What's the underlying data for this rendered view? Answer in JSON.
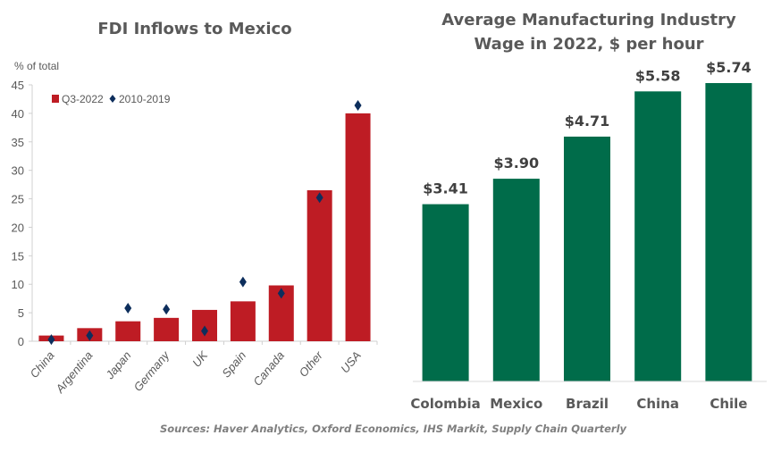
{
  "chart_data": [
    {
      "type": "bar",
      "title": "FDI Inflows to Mexico",
      "ylabel": "% of total",
      "xlabel": "",
      "ylim": [
        0,
        45
      ],
      "yticks": [
        0,
        5,
        10,
        15,
        20,
        25,
        30,
        35,
        40,
        45
      ],
      "grid": false,
      "legend_position": "top-left",
      "categories": [
        "China",
        "Argentina",
        "Japan",
        "Germany",
        "UK",
        "Spain",
        "Canada",
        "Other",
        "USA"
      ],
      "series": [
        {
          "name": "Q3-2022",
          "kind": "bar",
          "color": "#BE1C24",
          "values": [
            1.0,
            2.3,
            3.5,
            4.1,
            5.5,
            7.0,
            9.8,
            26.5,
            40.0
          ]
        },
        {
          "name": "2010-2019",
          "kind": "diamond-marker",
          "color": "#0D2E5C",
          "values": [
            0.3,
            1.0,
            5.8,
            5.6,
            1.8,
            10.4,
            8.4,
            25.2,
            41.4
          ]
        }
      ]
    },
    {
      "type": "bar",
      "title": "Average Manufacturing Industry Wage in 2022, $ per hour",
      "title_lines": [
        "Average Manufacturing Industry",
        "Wage in 2022, $ per hour"
      ],
      "xlabel": "",
      "ylabel": "",
      "ylim": [
        0,
        5.74
      ],
      "grid": false,
      "categories": [
        "Colombia",
        "Mexico",
        "Brazil",
        "China",
        "Chile"
      ],
      "values": [
        3.41,
        3.9,
        4.71,
        5.58,
        5.74
      ],
      "data_labels": [
        "$3.41",
        "$3.90",
        "$4.71",
        "$5.58",
        "$5.74"
      ],
      "color": "#006C4A"
    }
  ],
  "footer": {
    "sources": "Sources: Haver Analytics, Oxford Economics, IHS Markit, Supply Chain Quarterly"
  }
}
